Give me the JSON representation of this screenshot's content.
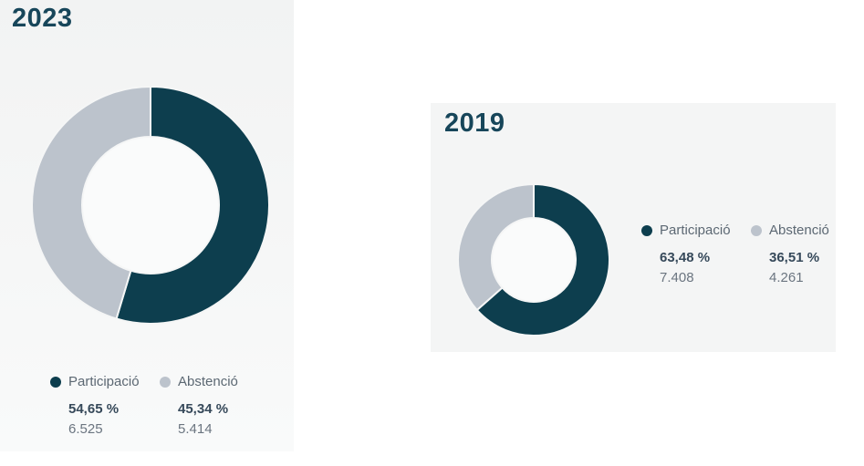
{
  "colors": {
    "participacio": "#0d3e4e",
    "abstencio": "#bcc3cc",
    "hole": "#fafbfb",
    "gap_stroke": "#f5f6f6",
    "title_text": "#17465a",
    "percent_text": "#36495a",
    "label_text": "#5c6873",
    "value_text": "#6b7580",
    "panel_bg": "#f4f5f5"
  },
  "chart_data": [
    {
      "type": "pie",
      "title": "2023",
      "subtype": "donut",
      "labels": [
        "Participació",
        "Abstenció"
      ],
      "values_pct": [
        54.65,
        45.34
      ],
      "display_pct": [
        "54,65 %",
        "45,34 %"
      ],
      "values_abs": [
        "6.525",
        "5.414"
      ],
      "legend_position": "bottom"
    },
    {
      "type": "pie",
      "title": "2019",
      "subtype": "donut",
      "labels": [
        "Participació",
        "Abstenció"
      ],
      "values_pct": [
        63.48,
        36.51
      ],
      "display_pct": [
        "63,48 %",
        "36,51 %"
      ],
      "values_abs": [
        "7.408",
        "4.261"
      ],
      "legend_position": "right"
    }
  ]
}
